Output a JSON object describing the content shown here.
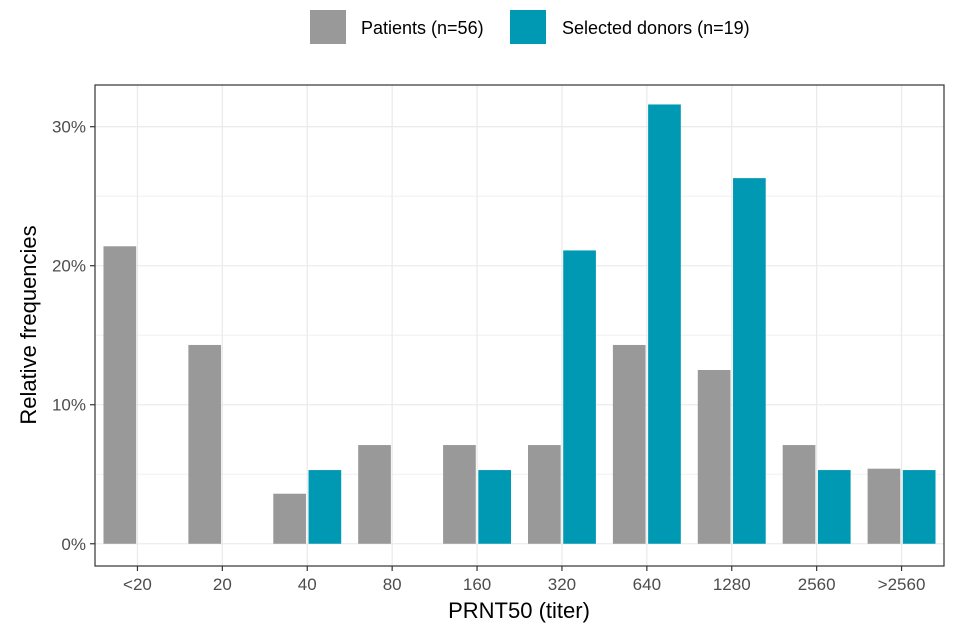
{
  "chart_data": {
    "type": "bar",
    "xlabel": "PRNT50 (titer)",
    "ylabel": "Relative frequencies",
    "categories": [
      "<20",
      "20",
      "40",
      "80",
      "160",
      "320",
      "640",
      "1280",
      "2560",
      ">2560"
    ],
    "series": [
      {
        "name": "Patients (n=56)",
        "color": "#999999",
        "values": [
          21.4,
          14.3,
          3.6,
          7.1,
          7.1,
          7.1,
          14.3,
          12.5,
          7.1,
          5.4
        ]
      },
      {
        "name": "Selected donors (n=19)",
        "color": "#0099B4",
        "values": [
          0,
          0,
          5.3,
          0,
          5.3,
          21.1,
          31.6,
          26.3,
          5.3,
          5.3
        ]
      }
    ],
    "yticks": [
      0,
      10,
      20,
      30
    ],
    "ytick_labels": [
      "0%",
      "10%",
      "20%",
      "30%"
    ],
    "ylim": [
      -1.6,
      33
    ],
    "grid": true,
    "legend_position": "top"
  }
}
